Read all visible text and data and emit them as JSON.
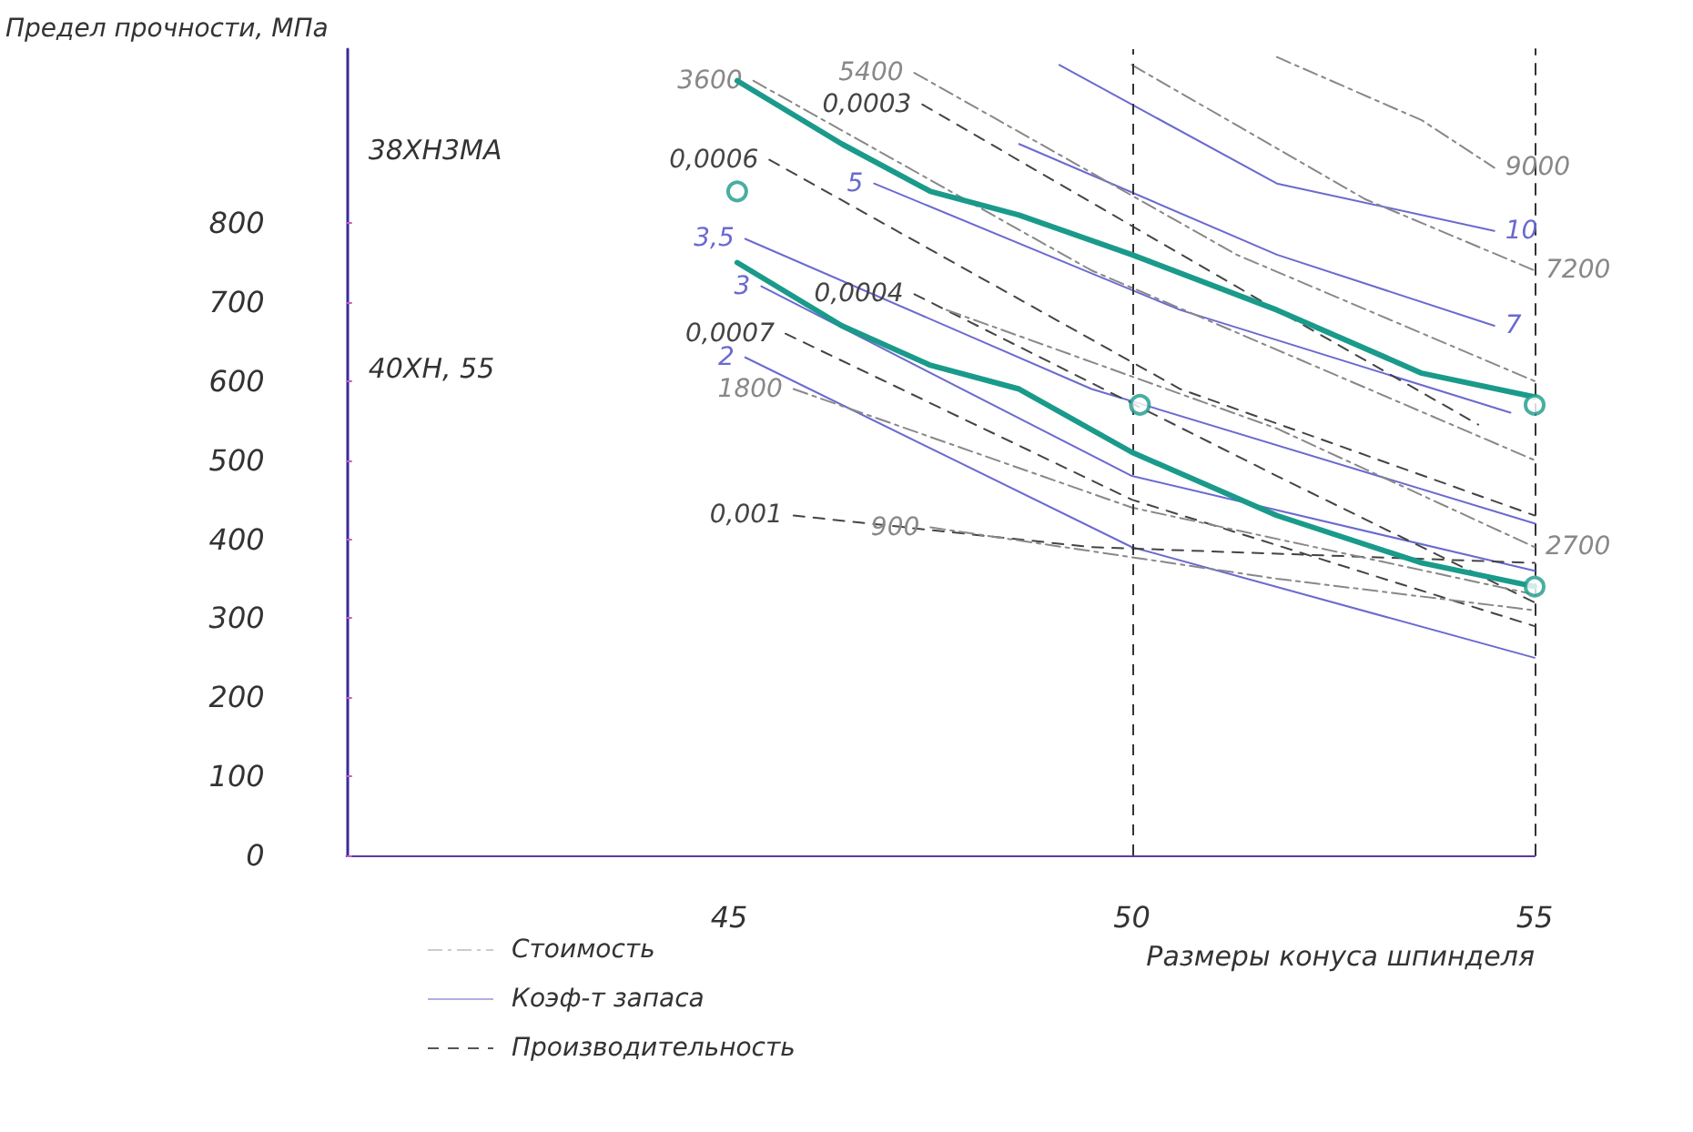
{
  "chart_data": {
    "type": "line",
    "ylabel": "Предел прочности, МПа",
    "xlabel": "Размеры конуса шпинделя",
    "xlim": [
      40.25,
      55
    ],
    "xticks": [
      45,
      50,
      55
    ],
    "ylim": [
      0,
      1020
    ],
    "yticks": [
      0,
      100,
      200,
      300,
      400,
      500,
      600,
      700,
      800
    ],
    "grid": false,
    "ref_lines": [
      {
        "axis": "x",
        "value": 50,
        "line_style": "dashed",
        "color": "#333333"
      }
    ],
    "annotations": [
      "38ХН3МА",
      "40ХН, 55",
      "Стоимость",
      "Коэф-т запаса",
      "Производительность"
    ],
    "series": [
      {
        "color": "#1a9a8a",
        "line_style": "solid",
        "x": [
          45.1,
          46.4,
          47.5,
          48.6,
          50.0,
          51.8,
          53.6,
          55.0
        ],
        "values": [
          980,
          900,
          840,
          810,
          760,
          690,
          610,
          580
        ]
      },
      {
        "color": "#1a9a8a",
        "line_style": "solid",
        "x": [
          45.1,
          46.4,
          47.5,
          48.6,
          50.0,
          51.8,
          53.6,
          55.0
        ],
        "values": [
          750,
          670,
          620,
          590,
          510,
          430,
          370,
          340
        ]
      },
      {
        "type": "scatter",
        "marker": "circle",
        "color": "#1a9a8a",
        "x": [
          45.1,
          50.1,
          55.0,
          55.0
        ],
        "values": [
          840,
          570,
          570,
          340
        ]
      },
      {
        "name": "10",
        "color": "#6a6ad0",
        "line_style": "solid",
        "x": [
          49.1,
          51.8,
          54.5
        ],
        "values": [
          1000,
          850,
          790
        ]
      },
      {
        "name": "7",
        "color": "#6a6ad0",
        "line_style": "solid",
        "x": [
          48.6,
          51.8,
          54.5
        ],
        "values": [
          900,
          760,
          670
        ]
      },
      {
        "name": "5",
        "color": "#6a6ad0",
        "line_style": "solid",
        "x": [
          46.8,
          50.6,
          54.7
        ],
        "values": [
          850,
          690,
          560
        ]
      },
      {
        "name": "3,5",
        "color": "#6a6ad0",
        "line_style": "solid",
        "x": [
          45.2,
          49.5,
          55.0
        ],
        "values": [
          780,
          590,
          420
        ]
      },
      {
        "name": "3",
        "color": "#6a6ad0",
        "line_style": "solid",
        "x": [
          45.4,
          50.0,
          55.0
        ],
        "values": [
          720,
          480,
          360
        ]
      },
      {
        "name": "2",
        "color": "#6a6ad0",
        "line_style": "solid",
        "x": [
          45.2,
          50.0,
          55.0
        ],
        "values": [
          630,
          390,
          250
        ]
      },
      {
        "name": "0,0003",
        "color": "#444444",
        "line_style": "dashed",
        "x": [
          47.4,
          51.8,
          54.3
        ],
        "values": [
          950,
          690,
          545
        ]
      },
      {
        "name": "0,0004",
        "color": "#444444",
        "line_style": "dashed",
        "x": [
          47.3,
          51.8,
          55.0
        ],
        "values": [
          710,
          480,
          320
        ]
      },
      {
        "name": "0,0006",
        "color": "#444444",
        "line_style": "dashed",
        "x": [
          45.5,
          50.6,
          55.0
        ],
        "values": [
          880,
          590,
          430
        ]
      },
      {
        "name": "0,0007",
        "color": "#444444",
        "line_style": "dashed",
        "x": [
          45.7,
          50.0,
          55.0
        ],
        "values": [
          660,
          450,
          290
        ]
      },
      {
        "name": "0,001",
        "color": "#444444",
        "line_style": "dashed",
        "x": [
          45.8,
          49.5,
          55.0
        ],
        "values": [
          430,
          390,
          370
        ]
      },
      {
        "name": "900",
        "color": "#888888",
        "line_style": "dotted",
        "x": [
          47.5,
          51.8,
          55.0
        ],
        "values": [
          415,
          350,
          310
        ]
      },
      {
        "name": "1800",
        "color": "#888888",
        "line_style": "dotted",
        "x": [
          45.8,
          50.0,
          55.0
        ],
        "values": [
          590,
          440,
          330
        ]
      },
      {
        "name": "2700",
        "color": "#888888",
        "line_style": "dotted",
        "x": [
          47.7,
          51.8,
          55.0
        ],
        "values": [
          690,
          540,
          390
        ]
      },
      {
        "name": "3600",
        "color": "#888888",
        "line_style": "dotted",
        "x": [
          45.3,
          49.5,
          55.0
        ],
        "values": [
          980,
          740,
          500
        ]
      },
      {
        "name": "5400",
        "color": "#888888",
        "line_style": "dotted",
        "x": [
          47.3,
          51.3,
          55.0
        ],
        "values": [
          990,
          760,
          600
        ]
      },
      {
        "name": "7200",
        "color": "#888888",
        "line_style": "dotted",
        "x": [
          50.0,
          52.9,
          55.0
        ],
        "values": [
          1000,
          830,
          740
        ]
      },
      {
        "name": "9000",
        "color": "#888888",
        "line_style": "dotted",
        "x": [
          51.8,
          53.6,
          54.5
        ],
        "values": [
          1010,
          930,
          870
        ]
      }
    ]
  }
}
